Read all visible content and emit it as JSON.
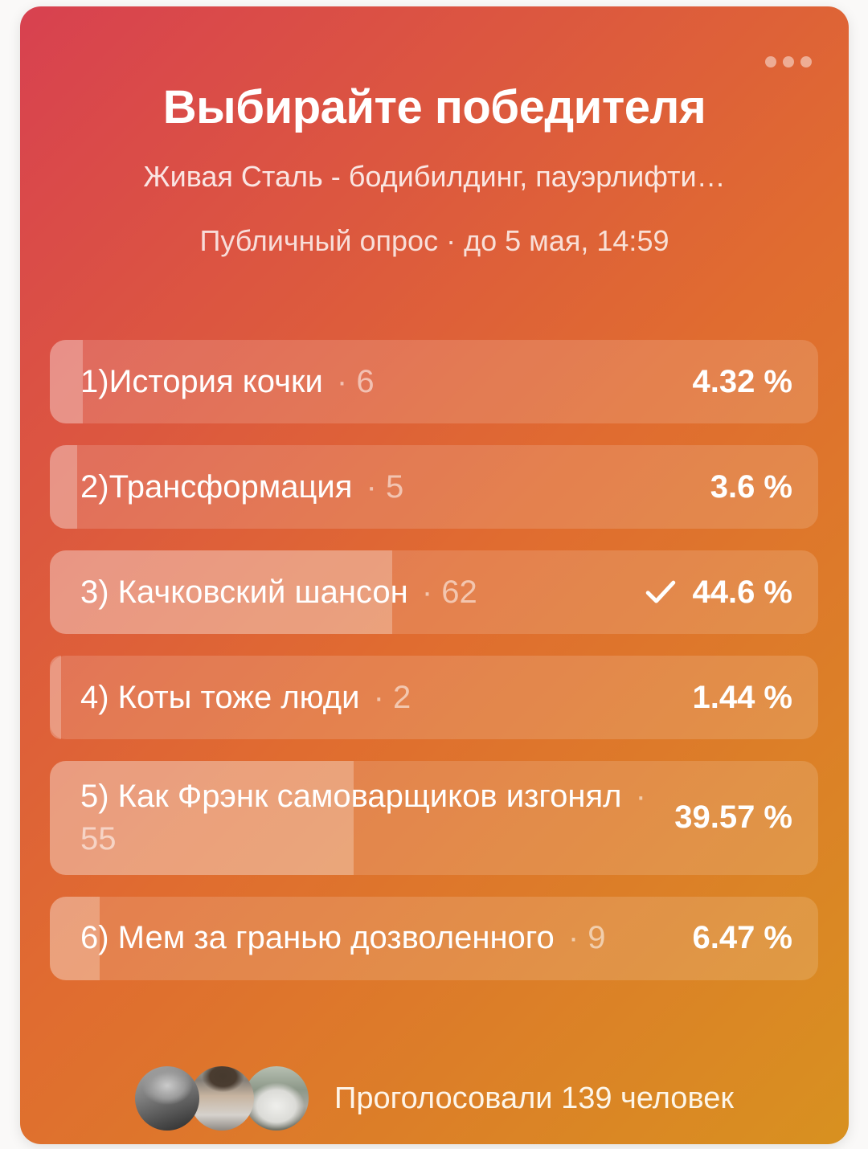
{
  "card": {
    "title": "Выбирайте победителя",
    "subtitle": "Живая Сталь - бодибилдинг, пауэрлифти…",
    "meta": "Публичный опрос · до 5 мая, 14:59",
    "menu_icon": "ellipsis-horizontal-icon",
    "colors": {
      "gradient_top_left": "#d84150",
      "gradient_bottom_right": "#d89120",
      "page_background": "#faf9f8",
      "option_row_overlay": "rgba(255,255,255,0.15)",
      "option_bar_overlay": "rgba(255,255,255,0.26)"
    }
  },
  "poll": {
    "votes_separator": "·",
    "options": [
      {
        "label": "1)История кочки",
        "votes": "6",
        "percent_label": "4.32 %",
        "percent_value": 4.32,
        "selected": false
      },
      {
        "label": "2)Трансформация",
        "votes": "5",
        "percent_label": "3.6 %",
        "percent_value": 3.6,
        "selected": false
      },
      {
        "label": "3) Качковский шансон",
        "votes": "62",
        "percent_label": "44.6 %",
        "percent_value": 44.6,
        "selected": true
      },
      {
        "label": "4) Коты тоже люди",
        "votes": "2",
        "percent_label": "1.44 %",
        "percent_value": 1.44,
        "selected": false
      },
      {
        "label": "5) Как Фрэнк самоварщиков изгонял",
        "votes": "55",
        "percent_label": "39.57 %",
        "percent_value": 39.57,
        "selected": false
      },
      {
        "label": "6) Мем за гранью дозволенного",
        "votes": "9",
        "percent_label": "6.47 %",
        "percent_value": 6.47,
        "selected": false
      }
    ]
  },
  "footer": {
    "text": "Проголосовали 139 человек",
    "avatars": [
      {
        "name": "avatar-pirate-grayscale"
      },
      {
        "name": "avatar-gym-mirror-selfie"
      },
      {
        "name": "avatar-white-hoodie-back"
      }
    ]
  }
}
